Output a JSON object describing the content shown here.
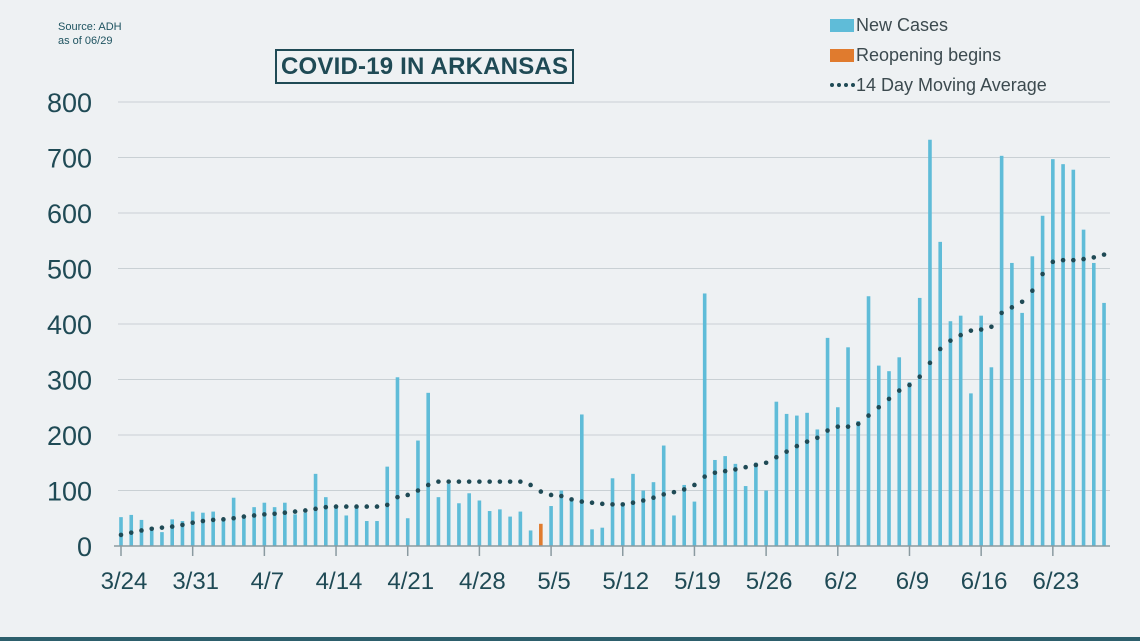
{
  "source_note": [
    "Source: ADH",
    "as of 06/29"
  ],
  "legend": {
    "new_cases": {
      "label": "New Cases",
      "color": "#5fbcd8"
    },
    "reopening": {
      "label": "Reopening begins",
      "color": "#e07b2e"
    },
    "moving_avg": {
      "label": "14 Day Moving Average",
      "color": "#1f4a55"
    }
  },
  "chart_data": {
    "type": "bar",
    "title": "COVID-19 IN ARKANSAS",
    "xlabel": "",
    "ylabel": "",
    "ylim": [
      0,
      800
    ],
    "yticks": [
      0,
      100,
      200,
      300,
      400,
      500,
      600,
      700,
      800
    ],
    "grid": true,
    "legend_position": "top-right",
    "xtick_labels": [
      {
        "label": "3/24",
        "index": 0
      },
      {
        "label": "3/31",
        "index": 7
      },
      {
        "label": "4/7",
        "index": 14
      },
      {
        "label": "4/14",
        "index": 21
      },
      {
        "label": "4/21",
        "index": 28
      },
      {
        "label": "4/28",
        "index": 35
      },
      {
        "label": "5/5",
        "index": 42
      },
      {
        "label": "5/12",
        "index": 49
      },
      {
        "label": "5/19",
        "index": 56
      },
      {
        "label": "5/26",
        "index": 63
      },
      {
        "label": "6/2",
        "index": 70
      },
      {
        "label": "6/9",
        "index": 77
      },
      {
        "label": "6/16",
        "index": 84
      },
      {
        "label": "6/23",
        "index": 91
      }
    ],
    "reopening_index": 41,
    "series": [
      {
        "name": "New Cases",
        "type": "bar",
        "values": [
          52,
          56,
          47,
          33,
          25,
          48,
          45,
          62,
          60,
          62,
          48,
          87,
          50,
          70,
          78,
          70,
          78,
          57,
          60,
          130,
          88,
          72,
          55,
          73,
          45,
          45,
          143,
          304,
          50,
          190,
          276,
          88,
          112,
          77,
          95,
          82,
          63,
          66,
          53,
          62,
          28,
          40,
          72,
          100,
          85,
          237,
          30,
          33,
          122,
          78,
          130,
          100,
          115,
          181,
          55,
          110,
          80,
          455,
          155,
          162,
          148,
          108,
          150,
          100,
          260,
          238,
          235,
          240,
          210,
          375,
          250,
          358,
          225,
          450,
          325,
          315,
          340,
          295,
          447,
          732,
          548,
          405,
          415,
          275,
          415,
          322,
          703,
          510,
          420,
          522,
          595,
          697,
          688,
          678,
          570,
          510,
          438
        ]
      },
      {
        "name": "14 Day Moving Average",
        "type": "line",
        "values": [
          20,
          24,
          28,
          31,
          33,
          35,
          38,
          42,
          45,
          47,
          48,
          50,
          53,
          55,
          57,
          58,
          60,
          62,
          64,
          67,
          70,
          71,
          71,
          71,
          71,
          71,
          74,
          88,
          92,
          100,
          110,
          116,
          116,
          116,
          116,
          116,
          116,
          116,
          116,
          116,
          110,
          98,
          92,
          90,
          84,
          80,
          78,
          76,
          75,
          75,
          78,
          82,
          87,
          93,
          97,
          102,
          110,
          125,
          132,
          135,
          138,
          142,
          146,
          150,
          160,
          170,
          180,
          188,
          195,
          208,
          215,
          215,
          220,
          235,
          250,
          265,
          280,
          290,
          305,
          330,
          355,
          370,
          380,
          388,
          390,
          395,
          420,
          430,
          440,
          460,
          490,
          512,
          515,
          515,
          517,
          520,
          525
        ]
      }
    ]
  }
}
